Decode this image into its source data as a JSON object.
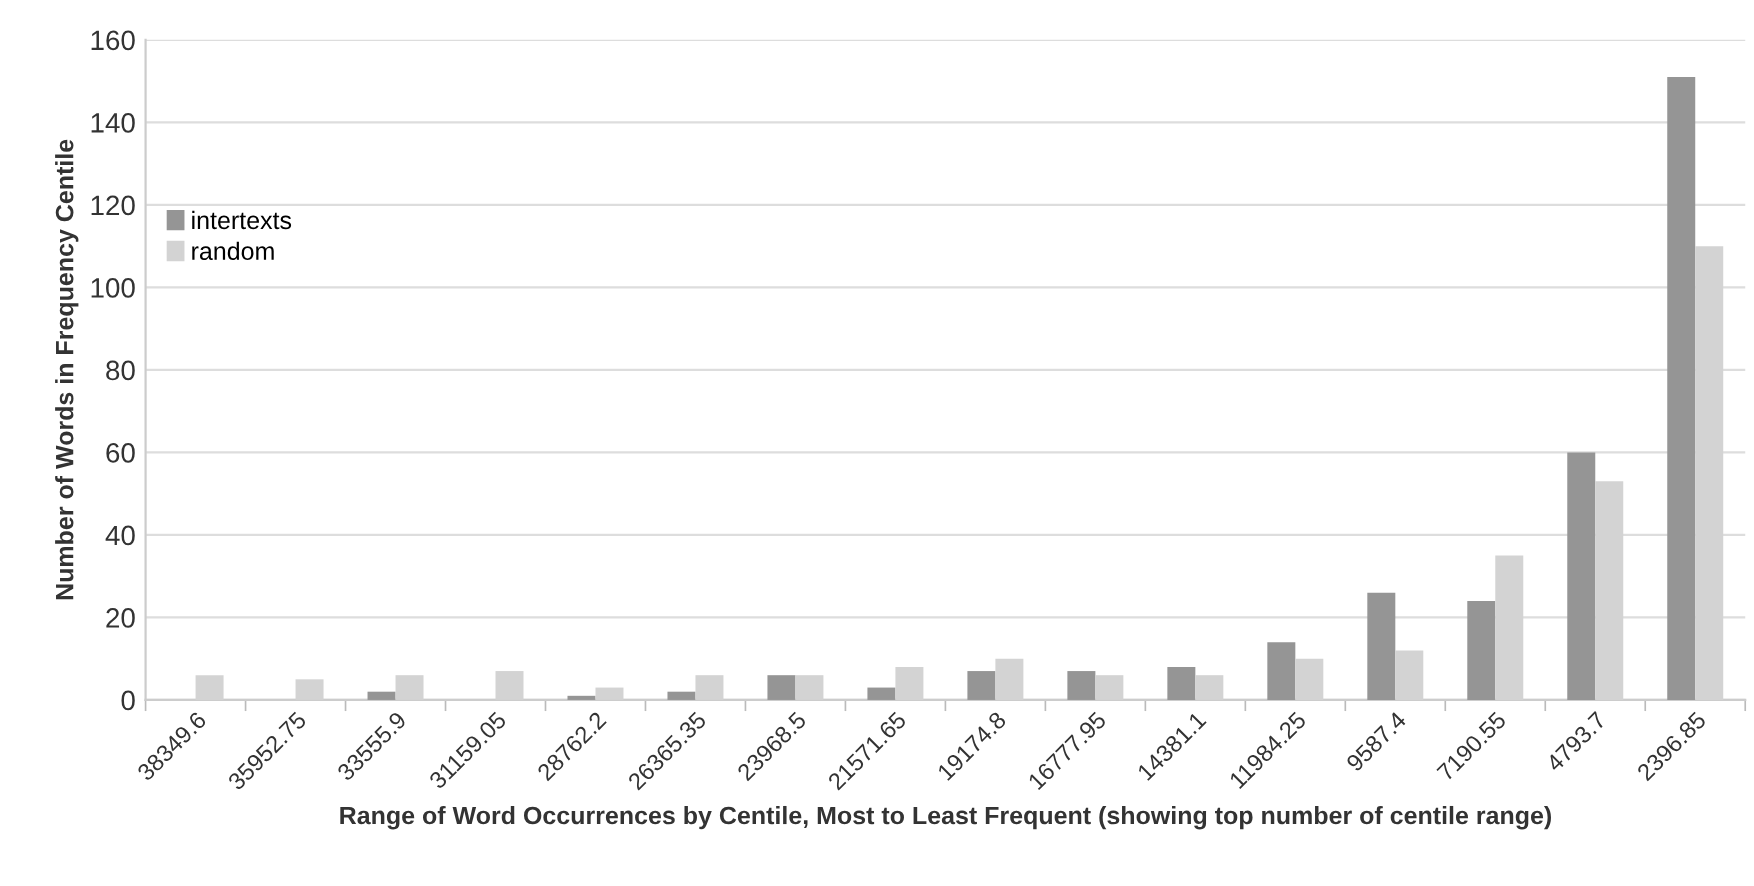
{
  "chart_data": {
    "type": "bar",
    "xlabel": "Range of Word Occurrences by Centile, Most to Least Frequent (showing top number of centile range)",
    "ylabel": "Number of Words in Frequency Centile",
    "categories": [
      "38349.6",
      "35952.75",
      "33555.9",
      "31159.05",
      "28762.2",
      "26365.35",
      "23968.5",
      "21571.65",
      "19174.8",
      "16777.95",
      "14381.1",
      "11984.25",
      "9587.4",
      "7190.55",
      "4793.7",
      "2396.85"
    ],
    "series": [
      {
        "name": "intertexts",
        "color": "#959595",
        "values": [
          0,
          0,
          2,
          0,
          1,
          2,
          6,
          3,
          7,
          7,
          8,
          14,
          26,
          24,
          60,
          151
        ]
      },
      {
        "name": "random",
        "color": "#d3d3d3",
        "values": [
          6,
          5,
          6,
          7,
          3,
          6,
          6,
          8,
          10,
          6,
          6,
          10,
          12,
          35,
          53,
          110
        ]
      }
    ],
    "ylim": [
      0,
      160
    ],
    "yticks": [
      0,
      20,
      40,
      60,
      80,
      100,
      120,
      140,
      160
    ],
    "grid": "y",
    "legend": "left"
  }
}
